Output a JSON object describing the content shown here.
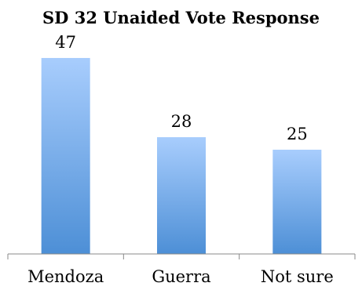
{
  "chart_data": {
    "type": "bar",
    "title": "SD 32 Unaided Vote Response",
    "categories": [
      "Mendoza",
      "Guerra",
      "Not sure"
    ],
    "values": [
      47,
      28,
      25
    ],
    "ylim": [
      0,
      50
    ],
    "grid": false,
    "xlabel": "",
    "ylabel": "",
    "bar_gradient": [
      "#a8cdfd",
      "#4d8fd6"
    ],
    "axis_color": "#888888"
  }
}
